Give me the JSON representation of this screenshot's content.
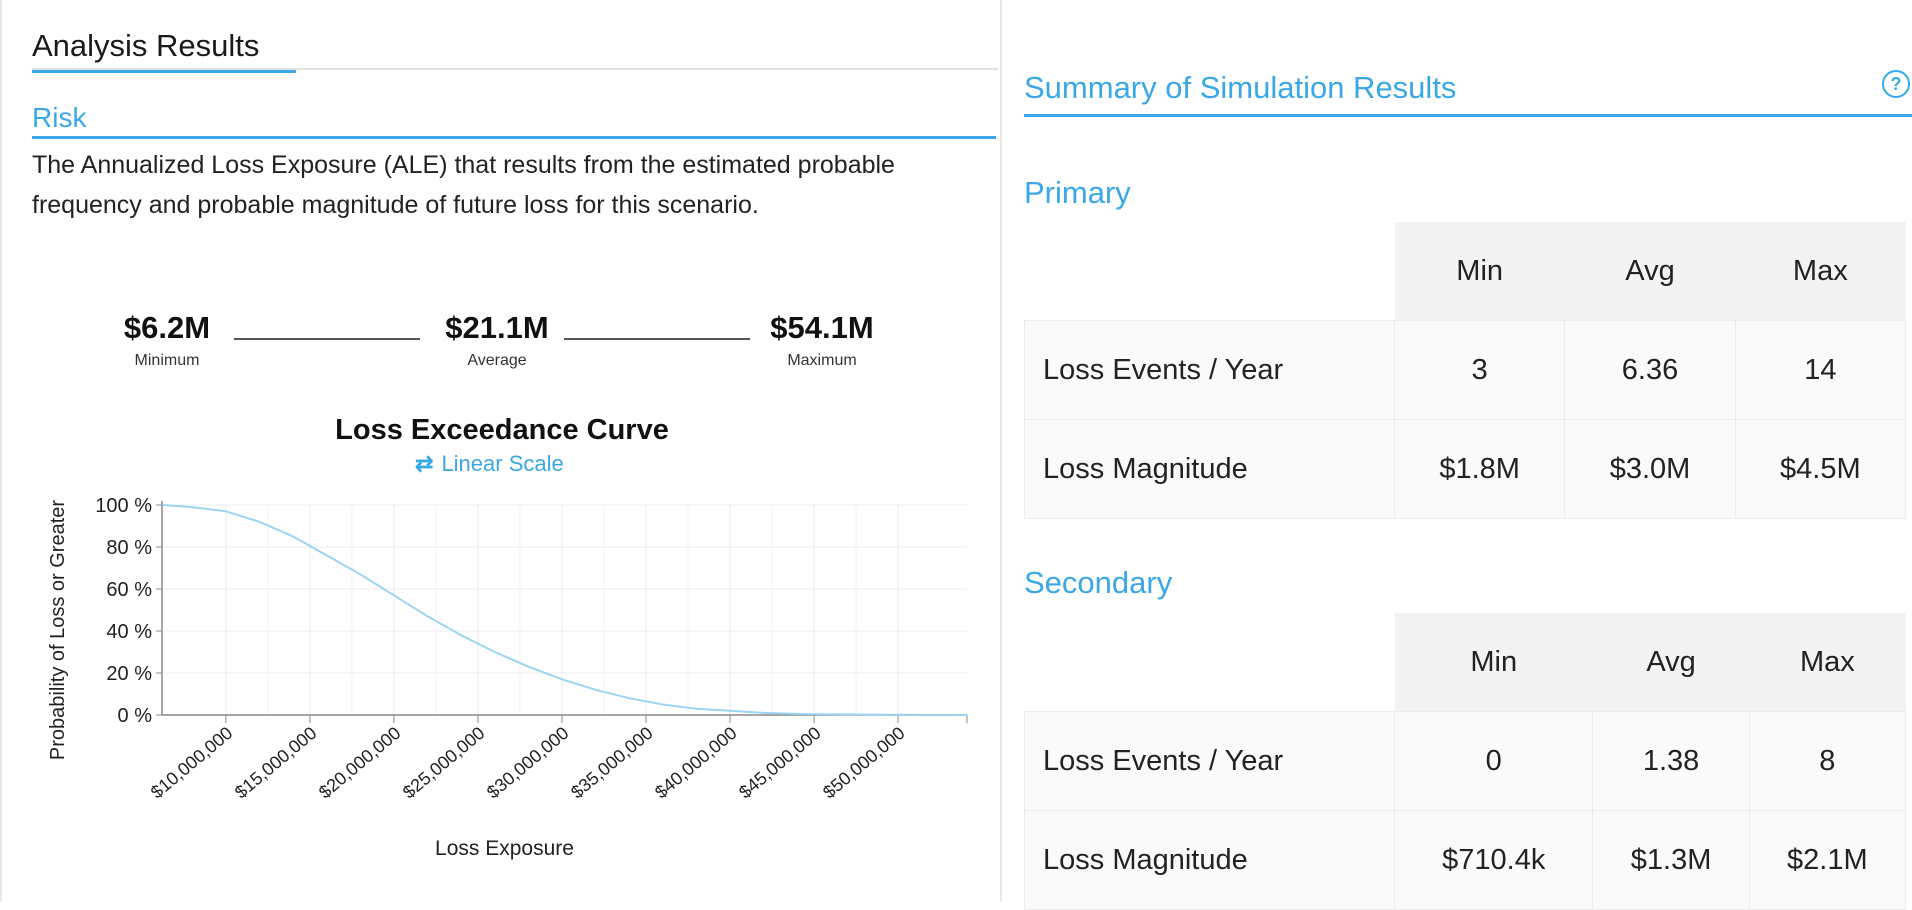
{
  "left": {
    "tab_label": "Analysis Results",
    "section_title": "Risk",
    "description": "The Annualized Loss Exposure (ALE) that results from the estimated probable frequency and probable magnitude of future loss for this scenario.",
    "stats": {
      "min_value": "$6.2M",
      "min_label": "Minimum",
      "avg_value": "$21.1M",
      "avg_label": "Average",
      "max_value": "$54.1M",
      "max_label": "Maximum"
    },
    "chart_title": "Loss Exceedance Curve",
    "scale_link": "Linear Scale",
    "scale_icon": "swap-arrows-icon"
  },
  "chart_data": {
    "type": "line",
    "title": "Loss Exceedance Curve",
    "xlabel": "Loss Exposure",
    "ylabel": "Probability of Loss or Greater",
    "x_ticks": [
      "$10,000,000",
      "$15,000,000",
      "$20,000,000",
      "$25,000,000",
      "$30,000,000",
      "$35,000,000",
      "$40,000,000",
      "$45,000,000",
      "$50,000,000"
    ],
    "y_ticks": [
      "100 %",
      "80 %",
      "60 %",
      "40 %",
      "20 %",
      "0 %"
    ],
    "xlim": [
      6200000,
      54100000
    ],
    "ylim": [
      0,
      100
    ],
    "grid": true,
    "color": "#9dd3f3",
    "series": [
      {
        "x": [
          6200000,
          8000000,
          10000000,
          12000000,
          14000000,
          16000000,
          18000000,
          20000000,
          22000000,
          24000000,
          26000000,
          28000000,
          30000000,
          32000000,
          34000000,
          36000000,
          38000000,
          40000000,
          42000000,
          44000000,
          46000000,
          50000000,
          54100000
        ],
        "y": [
          100,
          99,
          97,
          92,
          85,
          76,
          67,
          57,
          47,
          38,
          30,
          23,
          17,
          12,
          8,
          5,
          3,
          2,
          1,
          0.5,
          0.3,
          0.1,
          0
        ]
      }
    ]
  },
  "right": {
    "title": "Summary of Simulation Results",
    "help_icon": "help-circle-icon",
    "columns": [
      "Min",
      "Avg",
      "Max"
    ],
    "primary": {
      "title": "Primary",
      "rows": [
        {
          "label": "Loss Events / Year",
          "min": "3",
          "avg": "6.36",
          "max": "14"
        },
        {
          "label": "Loss Magnitude",
          "min": "$1.8M",
          "avg": "$3.0M",
          "max": "$4.5M"
        }
      ]
    },
    "secondary": {
      "title": "Secondary",
      "rows": [
        {
          "label": "Loss Events / Year",
          "min": "0",
          "avg": "1.38",
          "max": "8"
        },
        {
          "label": "Loss Magnitude",
          "min": "$710.4k",
          "avg": "$1.3M",
          "max": "$2.1M"
        }
      ]
    }
  }
}
